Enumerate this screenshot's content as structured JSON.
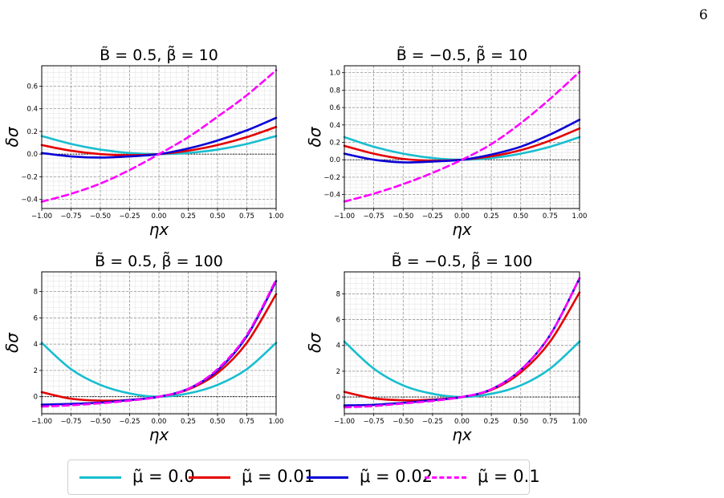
{
  "page_number": "6",
  "colors": {
    "mu_0.0": "#17becf",
    "mu_0.01": "#e50000",
    "mu_0.02": "#0a00d6",
    "mu_0.1": "#ff00ff"
  },
  "legend": [
    {
      "label": "μ̃ = 0.0",
      "color": "#17becf",
      "dash": "solid"
    },
    {
      "label": "μ̃ = 0.01",
      "color": "#e50000",
      "dash": "solid"
    },
    {
      "label": "μ̃ = 0.02",
      "color": "#0a00d6",
      "dash": "solid"
    },
    {
      "label": "μ̃ = 0.1",
      "color": "#ff00ff",
      "dash": "dashed"
    }
  ],
  "chart_data": [
    {
      "type": "line",
      "title": "B̃ = 0.5,  β̃ = 10",
      "xlabel": "ηx",
      "ylabel": "δσ",
      "xlim": [
        -1.0,
        1.0
      ],
      "ylim": [
        -0.48,
        0.78
      ],
      "xticks": [
        "−1.00",
        "−0.75",
        "−0.50",
        "−0.25",
        "0.00",
        "0.25",
        "0.50",
        "0.75",
        "1.00"
      ],
      "yticks": [
        -0.4,
        -0.2,
        0.0,
        0.2,
        0.4,
        0.6
      ],
      "ytick_labels": [
        "−0.4",
        "−0.2",
        "0.0",
        "0.2",
        "0.4",
        "0.6"
      ],
      "grid": true,
      "x": [
        -1.0,
        -0.75,
        -0.5,
        -0.25,
        0.0,
        0.25,
        0.5,
        0.75,
        1.0
      ],
      "series": [
        {
          "name": "μ̃ = 0.0",
          "values": [
            0.16,
            0.09,
            0.04,
            0.01,
            0.0,
            0.01,
            0.04,
            0.09,
            0.16
          ]
        },
        {
          "name": "μ̃ = 0.01",
          "values": [
            0.08,
            0.03,
            0.0,
            -0.01,
            0.0,
            0.03,
            0.08,
            0.15,
            0.24
          ]
        },
        {
          "name": "μ̃ = 0.02",
          "values": [
            0.01,
            -0.02,
            -0.03,
            -0.02,
            0.0,
            0.05,
            0.12,
            0.21,
            0.32
          ]
        },
        {
          "name": "μ̃ = 0.1",
          "values": [
            -0.42,
            -0.35,
            -0.26,
            -0.14,
            0.0,
            0.15,
            0.33,
            0.52,
            0.74
          ]
        }
      ]
    },
    {
      "type": "line",
      "title": "B̃ = −0.5,  β̃ = 10",
      "xlabel": "ηx",
      "ylabel": "δσ",
      "xlim": [
        -1.0,
        1.0
      ],
      "ylim": [
        -0.56,
        1.08
      ],
      "xticks": [
        "−1.00",
        "−0.75",
        "−0.50",
        "−0.25",
        "0.00",
        "0.25",
        "0.50",
        "0.75",
        "1.00"
      ],
      "yticks": [
        -0.4,
        -0.2,
        0.0,
        0.2,
        0.4,
        0.6,
        0.8,
        1.0
      ],
      "ytick_labels": [
        "−0.4",
        "−0.2",
        "0.0",
        "0.2",
        "0.4",
        "0.6",
        "0.8",
        "1.0"
      ],
      "grid": true,
      "x": [
        -1.0,
        -0.75,
        -0.5,
        -0.25,
        0.0,
        0.25,
        0.5,
        0.75,
        1.0
      ],
      "series": [
        {
          "name": "μ̃ = 0.0",
          "values": [
            0.26,
            0.15,
            0.07,
            0.02,
            0.0,
            0.02,
            0.07,
            0.15,
            0.26
          ]
        },
        {
          "name": "μ̃ = 0.01",
          "values": [
            0.16,
            0.07,
            0.01,
            -0.01,
            0.0,
            0.04,
            0.11,
            0.22,
            0.36
          ]
        },
        {
          "name": "μ̃ = 0.02",
          "values": [
            0.07,
            0.0,
            -0.03,
            -0.02,
            0.0,
            0.06,
            0.15,
            0.29,
            0.46
          ]
        },
        {
          "name": "μ̃ = 0.1",
          "values": [
            -0.48,
            -0.39,
            -0.28,
            -0.15,
            0.0,
            0.18,
            0.42,
            0.7,
            1.01
          ]
        }
      ]
    },
    {
      "type": "line",
      "title": "B̃ = 0.5,  β̃ = 100",
      "xlabel": "ηx",
      "ylabel": "δσ",
      "xlim": [
        -1.0,
        1.0
      ],
      "ylim": [
        -1.3,
        9.5
      ],
      "xticks": [
        "−1.00",
        "−0.75",
        "−0.50",
        "−0.25",
        "0.00",
        "0.25",
        "0.50",
        "0.75",
        "1.00"
      ],
      "yticks": [
        0,
        2,
        4,
        6,
        8
      ],
      "ytick_labels": [
        "0",
        "2",
        "4",
        "6",
        "8"
      ],
      "grid": true,
      "x": [
        -1.0,
        -0.75,
        -0.5,
        -0.25,
        0.0,
        0.25,
        0.5,
        0.75,
        1.0
      ],
      "series": [
        {
          "name": "μ̃ = 0.0",
          "values": [
            4.1,
            2.1,
            0.9,
            0.25,
            0.0,
            0.25,
            0.9,
            2.1,
            4.1
          ]
        },
        {
          "name": "μ̃ = 0.01",
          "values": [
            0.35,
            -0.15,
            -0.3,
            -0.25,
            0.0,
            0.55,
            1.8,
            4.1,
            7.8
          ]
        },
        {
          "name": "μ̃ = 0.02",
          "values": [
            -0.6,
            -0.55,
            -0.45,
            -0.25,
            0.0,
            0.6,
            2.0,
            4.6,
            8.8
          ]
        },
        {
          "name": "μ̃ = 0.1",
          "values": [
            -0.75,
            -0.65,
            -0.5,
            -0.3,
            0.0,
            0.6,
            2.1,
            4.7,
            8.9
          ]
        }
      ]
    },
    {
      "type": "line",
      "title": "B̃ = −0.5,  β̃ = 100",
      "xlabel": "ηx",
      "ylabel": "δσ",
      "xlim": [
        -1.0,
        1.0
      ],
      "ylim": [
        -1.3,
        9.7
      ],
      "xticks": [
        "−1.00",
        "−0.75",
        "−0.50",
        "−0.25",
        "0.00",
        "0.25",
        "0.50",
        "0.75",
        "1.00"
      ],
      "yticks": [
        0,
        2,
        4,
        6,
        8
      ],
      "ytick_labels": [
        "0",
        "2",
        "4",
        "6",
        "8"
      ],
      "grid": true,
      "x": [
        -1.0,
        -0.75,
        -0.5,
        -0.25,
        0.0,
        0.25,
        0.5,
        0.75,
        1.0
      ],
      "series": [
        {
          "name": "μ̃ = 0.0",
          "values": [
            4.3,
            2.2,
            0.9,
            0.25,
            0.0,
            0.25,
            0.9,
            2.2,
            4.3
          ]
        },
        {
          "name": "μ̃ = 0.01",
          "values": [
            0.4,
            -0.1,
            -0.25,
            -0.2,
            0.0,
            0.55,
            1.9,
            4.3,
            8.1
          ]
        },
        {
          "name": "μ̃ = 0.02",
          "values": [
            -0.65,
            -0.6,
            -0.45,
            -0.25,
            0.0,
            0.6,
            2.1,
            4.8,
            9.2
          ]
        },
        {
          "name": "μ̃ = 0.1",
          "values": [
            -0.8,
            -0.7,
            -0.5,
            -0.3,
            0.0,
            0.6,
            2.1,
            4.8,
            9.2
          ]
        }
      ]
    }
  ]
}
